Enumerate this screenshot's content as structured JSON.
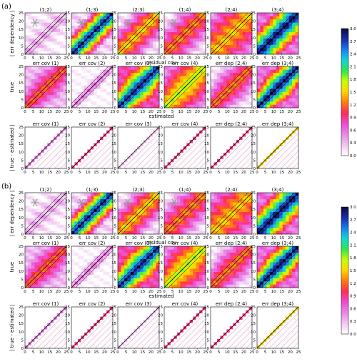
{
  "figure": {
    "panel_labels": [
      "(a)",
      "(b)"
    ],
    "row_ylabels": [
      "| err dependency |",
      "true",
      "| true - estimated |"
    ],
    "row_xlabels": [
      "residual cov",
      "estimated",
      ""
    ],
    "tick_values": [
      0,
      5,
      10,
      15,
      20,
      25
    ]
  },
  "chart_data": {
    "type": "heatmap",
    "x": [
      0,
      25
    ],
    "y": [
      0,
      25
    ],
    "colorbar": {
      "ticks": [
        3.0,
        2.7,
        2.4,
        2.1,
        1.8,
        1.5,
        1.2,
        0.9,
        0.6,
        0.3,
        0.0
      ],
      "tick_labels": [
        "3.0",
        "2.7",
        "2.4",
        "2.1",
        "1.8",
        "1.5",
        "1.2",
        "0.9",
        "0.6",
        "0.3",
        "0.0"
      ],
      "range": [
        0,
        3.0
      ],
      "colors": [
        "#ffffff",
        "#f2c6f2",
        "#e68ae6",
        "#ee4ad4",
        "#ff2a55",
        "#ff7a10",
        "#ffd400",
        "#c8ff00",
        "#33e44a",
        "#11d6d6",
        "#1a7df0",
        "#1b2aa8",
        "#0c0c3a"
      ]
    },
    "panel_sets": [
      {
        "label": "(a)",
        "rows": [
          {
            "titles": [
              "(1;2)",
              "(1;3)",
              "(2;3)",
              "(1;4)",
              "(2;4)",
              "(3;4)"
            ],
            "xlabel": "residual cov",
            "ylabel": "| err dependency |"
          },
          {
            "titles": [
              "err cov (1)",
              "err cov (2)",
              "err cov (3)",
              "err cov (4)",
              "err dep (2;4)",
              "err dep (3;4)"
            ],
            "xlabel": "estimated",
            "ylabel": "true"
          },
          {
            "titles": [
              "err cov (1)",
              "err cov (2)",
              "err cov (3)",
              "err cov (4)",
              "err dep (2;4)",
              "err dep (3;4)"
            ],
            "xlabel": "",
            "ylabel": "| true - estimated |"
          }
        ]
      },
      {
        "label": "(b)",
        "rows": [
          {
            "titles": [
              "(1;2)",
              "(1;3)",
              "(2;3)",
              "(1;4)",
              "(2;4)",
              "(3;4)"
            ],
            "xlabel": "residual cov",
            "ylabel": "| err dependency |"
          },
          {
            "titles": [
              "err cov (1)",
              "err cov (2)",
              "err cov (3)",
              "err cov (4)",
              "err dep (2;4)",
              "err dep (3;4)"
            ],
            "xlabel": "estimated",
            "ylabel": "true"
          },
          {
            "titles": [
              "err cov (1)",
              "err cov (2)",
              "err cov (3)",
              "err cov (4)",
              "err dep (2;4)",
              "err dep (3;4)"
            ],
            "xlabel": "",
            "ylabel": "| true - estimated |"
          }
        ]
      }
    ],
    "patterns_row1": [
      {
        "peak": 0.3,
        "width": 6,
        "base": 0.05,
        "asterisk": true
      },
      {
        "peak": 2.7,
        "width": 7,
        "base": 0.2,
        "asterisk": true
      },
      {
        "peak": 1.4,
        "width": 9,
        "base": 0.15,
        "asterisk": true
      },
      {
        "peak": 1.2,
        "width": 10,
        "base": 0.1,
        "asterisk": true
      },
      {
        "peak": 1.1,
        "width": 12,
        "base": 0.4,
        "asterisk": false
      },
      {
        "peak": 2.4,
        "width": 8,
        "base": 0.6,
        "asterisk": false
      }
    ],
    "patterns_row2": [
      {
        "peak": 0.9,
        "width": 8,
        "base": 0.3
      },
      {
        "peak": 0.6,
        "width": 3,
        "base": 0.02
      },
      {
        "peak": 2.1,
        "width": 8,
        "base": 0.8
      },
      {
        "peak": 1.3,
        "width": 11,
        "base": 0.5
      },
      {
        "peak": 1.2,
        "width": 10,
        "base": 0.1
      },
      {
        "peak": 2.4,
        "width": 8,
        "base": 0.6
      }
    ],
    "patterns_row3": [
      {
        "peak": 0.6,
        "base": 0.0
      },
      {
        "peak": 0.9,
        "base": 0.0
      },
      {
        "peak": 0.3,
        "base": 0.0
      },
      {
        "peak": 0.9,
        "base": 0.0
      },
      {
        "peak": 0.9,
        "base": 0.0
      },
      {
        "peak": 1.5,
        "base": 0.0
      }
    ]
  }
}
